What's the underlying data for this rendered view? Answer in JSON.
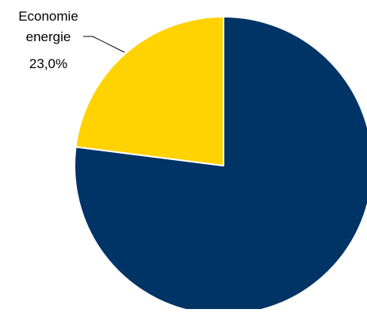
{
  "chart_data": {
    "type": "pie",
    "title": "",
    "slices": [
      {
        "label_lines": [],
        "value_label": "",
        "value": 77.0,
        "color": "#003366"
      },
      {
        "label_lines": [
          "Economie",
          "energie"
        ],
        "value_label": "23,0%",
        "value": 23.0,
        "color": "#FFD200"
      }
    ],
    "legend": "none",
    "start_angle": "12 o'clock, clockwise",
    "slice_border_color": "#FFFFFF"
  }
}
